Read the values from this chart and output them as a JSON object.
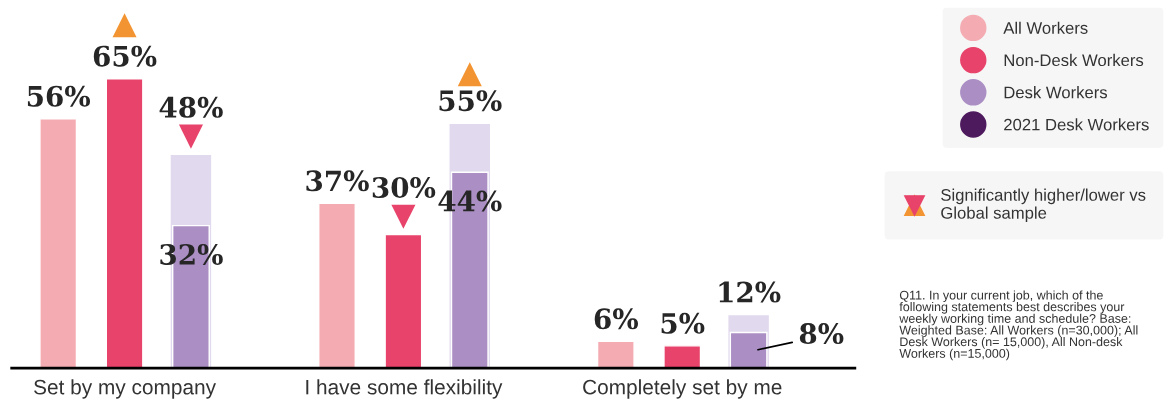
{
  "chart_data": {
    "type": "bar",
    "categories": [
      "Set by my company",
      "I have some flexibility",
      "Completely set by me"
    ],
    "series": [
      {
        "name": "All Workers",
        "color": "#f4acb2",
        "values": [
          56,
          37,
          6
        ],
        "value_labels": [
          "56%",
          "37%",
          "6%"
        ]
      },
      {
        "name": "Non-Desk Workers",
        "color": "#e8436a",
        "values": [
          65,
          30,
          5
        ],
        "value_labels": [
          "65%",
          "30%",
          "5%"
        ]
      },
      {
        "type": "scatter",
        "marker": "triangle",
        "color": "#f39433",
        "values": [
          77,
          null,
          null
        ]
      },
      {
        "type": "scatter",
        "marker": "triangle_down",
        "color": "#e8436a",
        "values": [
          null,
          34,
          null
        ]
      },
      {
        "name": "Desk Workers",
        "color": "#ab8fc4",
        "values": [
          32,
          44,
          8
        ],
        "value_labels": [
          "32%",
          "44%",
          "8%"
        ]
      },
      {
        "color": "#e1d9ed",
        "values": [
          48,
          55,
          12
        ],
        "value_labels": [
          "48%",
          "55%",
          "12%"
        ]
      },
      {
        "type": "scatter",
        "marker": "triangle",
        "color": "#f39433",
        "values": [
          null,
          66,
          null
        ]
      },
      {
        "type": "scatter",
        "marker": "triangle_down",
        "color": "#e8436a",
        "values": [
          52,
          null,
          null
        ]
      },
      {
        "name": "2021 Desk Workers",
        "color": "#4e1a5e",
        "values": [
          null,
          null,
          null
        ]
      }
    ],
    "legend": "top right",
    "annotations": [
      "Significantly higher/lower vs\nGlobal sample",
      "Q11. In your current job, which of the\nfollowing statements best describes your\nweekly working time and schedule? Base:\nWeighted Base: All Workers (n=30,000); All\nDesk Workers (n= 15,000), All Non-desk\nWorkers (n=15,000)"
    ]
  }
}
